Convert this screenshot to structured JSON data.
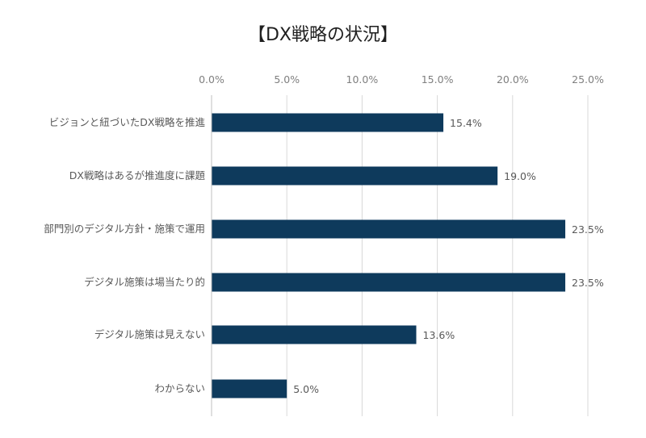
{
  "chart_data": {
    "type": "bar",
    "orientation": "horizontal",
    "title": "【DX戦略の状況】",
    "categories": [
      "ビジョンと紐づいたDX戦略を推進",
      "DX戦略はあるが推進度に課題",
      "部門別のデジタル方針・施策で運用",
      "デジタル施策は場当たり的",
      "デジタル施策は見えない",
      "わからない"
    ],
    "values": [
      15.4,
      19.0,
      23.5,
      23.5,
      13.6,
      5.0
    ],
    "data_labels": [
      "15.4%",
      "19.0%",
      "23.5%",
      "23.5%",
      "13.6%",
      "5.0%"
    ],
    "xlim": [
      0,
      25
    ],
    "x_ticks": [
      0,
      5,
      10,
      15,
      20,
      25
    ],
    "x_tick_labels": [
      "0.0%",
      "5.0%",
      "10.0%",
      "15.0%",
      "20.0%",
      "25.0%"
    ],
    "x_axis_position": "top",
    "grid": true,
    "legend": "none",
    "bar_color": "#0e3a5c"
  }
}
